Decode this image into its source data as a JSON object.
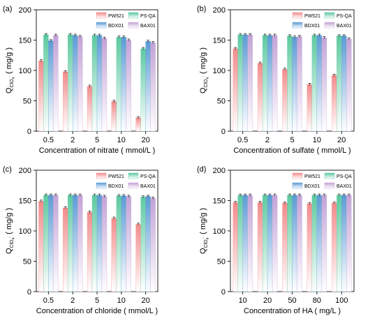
{
  "series_names": [
    "PW521",
    "PS-QA",
    "BDX01",
    "BAX01"
  ],
  "series_colors": [
    "#f28b8b",
    "#5cc9a0",
    "#5b9bd5",
    "#c3a3d6"
  ],
  "chart_data": [
    {
      "type": "bar",
      "panel_label": "(a)",
      "xlabel": "Concentration of nitrate ( mmol/L )",
      "ylabel_main": "Q",
      "ylabel_sub": "ClO4-",
      "ylabel_unit": "( mg/g )",
      "categories": [
        "0.5",
        "2",
        "5",
        "10",
        "20"
      ],
      "ylim": [
        0,
        200
      ],
      "yticks": [
        "0",
        "50",
        "100",
        "150",
        "200"
      ],
      "legend_position": "top-right",
      "series": [
        {
          "name": "PW521",
          "values": [
            116,
            98,
            74,
            49,
            22
          ]
        },
        {
          "name": "PS-QA",
          "values": [
            159,
            159,
            158,
            155,
            136
          ]
        },
        {
          "name": "BDX01",
          "values": [
            149,
            158,
            158,
            155,
            148
          ]
        },
        {
          "name": "BAX01",
          "values": [
            158,
            156,
            153,
            150,
            146
          ]
        }
      ]
    },
    {
      "type": "bar",
      "panel_label": "(b)",
      "xlabel": "Concentration of sulfate ( mmol/L )",
      "ylabel_main": "Q",
      "ylabel_sub": "ClO4-",
      "ylabel_unit": "( mg/g )",
      "categories": [
        "0.5",
        "2",
        "5",
        "10",
        "20"
      ],
      "ylim": [
        0,
        200
      ],
      "yticks": [
        "0",
        "50",
        "100",
        "150",
        "200"
      ],
      "legend_position": "top-right",
      "series": [
        {
          "name": "PW521",
          "values": [
            136,
            112,
            102,
            77,
            92
          ]
        },
        {
          "name": "PS-QA",
          "values": [
            159,
            158,
            157,
            158,
            157
          ]
        },
        {
          "name": "BDX01",
          "values": [
            159,
            158,
            155,
            158,
            157
          ]
        },
        {
          "name": "BAX01",
          "values": [
            159,
            158,
            156,
            154,
            152
          ]
        }
      ]
    },
    {
      "type": "bar",
      "panel_label": "(c)",
      "xlabel": "Concentration of chloride ( mmol/L )",
      "ylabel_main": "Q",
      "ylabel_sub": "ClO4-",
      "ylabel_unit": "( mg/g )",
      "categories": [
        "0.5",
        "2",
        "5",
        "10",
        "20"
      ],
      "ylim": [
        0,
        200
      ],
      "yticks": [
        "0",
        "50",
        "100",
        "150",
        "200"
      ],
      "legend_position": "top-right",
      "series": [
        {
          "name": "PW521",
          "values": [
            149,
            138,
            131,
            121,
            111
          ]
        },
        {
          "name": "PS-QA",
          "values": [
            159,
            159,
            159,
            158,
            156
          ]
        },
        {
          "name": "BDX01",
          "values": [
            159,
            159,
            159,
            158,
            157
          ]
        },
        {
          "name": "BAX01",
          "values": [
            159,
            159,
            157,
            157,
            154
          ]
        }
      ]
    },
    {
      "type": "bar",
      "panel_label": "(d)",
      "xlabel": "Concentration of HA ( mg/L )",
      "ylabel_main": "Q",
      "ylabel_sub": "ClO4-",
      "ylabel_unit": "( mg/g )",
      "categories": [
        "10",
        "20",
        "50",
        "80",
        "100"
      ],
      "ylim": [
        0,
        200
      ],
      "yticks": [
        "0",
        "50",
        "100",
        "150",
        "200"
      ],
      "legend_position": "top-right",
      "series": [
        {
          "name": "PW521",
          "values": [
            147,
            147,
            146,
            145,
            146
          ]
        },
        {
          "name": "PS-QA",
          "values": [
            159,
            159,
            159,
            159,
            159
          ]
        },
        {
          "name": "BDX01",
          "values": [
            159,
            159,
            159,
            159,
            159
          ]
        },
        {
          "name": "BAX01",
          "values": [
            159,
            159,
            159,
            159,
            159
          ]
        }
      ]
    }
  ]
}
